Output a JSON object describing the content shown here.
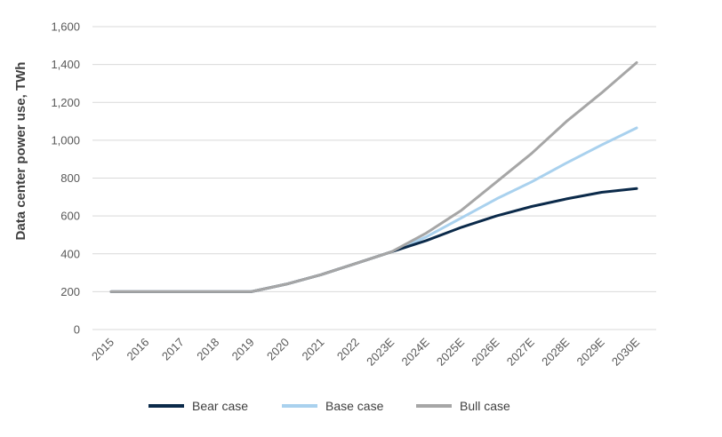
{
  "chart_data": {
    "type": "line",
    "title": "",
    "xlabel": "",
    "ylabel": "Data center power use, TWh",
    "ylim": [
      0,
      1600
    ],
    "yticks": [
      0,
      200,
      400,
      600,
      800,
      1000,
      1200,
      1400,
      1600
    ],
    "ytick_labels": [
      "0",
      "200",
      "400",
      "600",
      "800",
      "1,000",
      "1,200",
      "1,400",
      "1,600"
    ],
    "categories": [
      "2015",
      "2016",
      "2017",
      "2018",
      "2019",
      "2020",
      "2021",
      "2022",
      "2023E",
      "2024E",
      "2025E",
      "2026E",
      "2027E",
      "2028E",
      "2029E",
      "2030E"
    ],
    "grid": true,
    "legend_position": "bottom",
    "series": [
      {
        "name": "Bear case",
        "color": "#0b2a4a",
        "values": [
          200,
          200,
          200,
          200,
          200,
          240,
          290,
          350,
          410,
          470,
          540,
          600,
          650,
          690,
          725,
          745
        ]
      },
      {
        "name": "Base case",
        "color": "#a9d1ee",
        "values": [
          200,
          200,
          200,
          200,
          200,
          240,
          290,
          350,
          410,
          490,
          590,
          690,
          780,
          880,
          975,
          1065
        ]
      },
      {
        "name": "Bull case",
        "color": "#a6a6a6",
        "values": [
          200,
          200,
          200,
          200,
          200,
          240,
          290,
          350,
          410,
          510,
          630,
          780,
          930,
          1100,
          1250,
          1410
        ]
      }
    ]
  }
}
